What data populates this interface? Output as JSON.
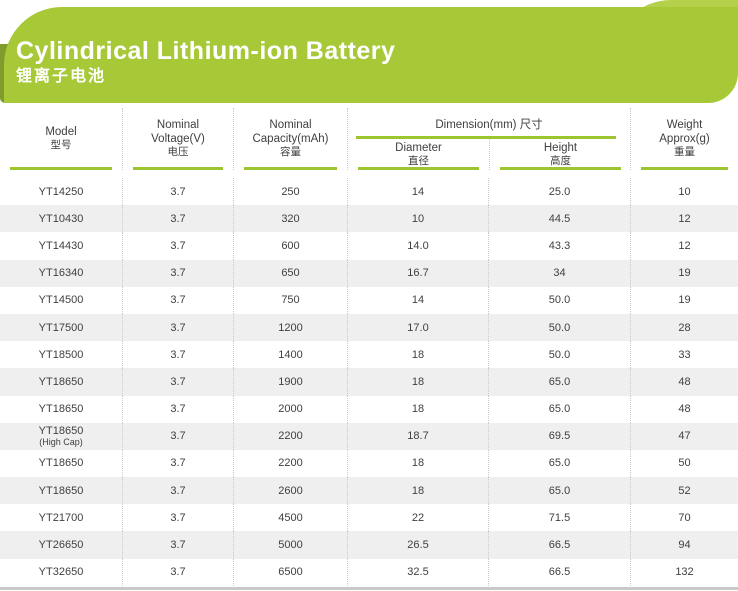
{
  "banner": {
    "title": "Cylindrical Lithium-ion Battery",
    "subtitle": "锂离子电池",
    "colors": {
      "main_green": "#a7c938",
      "light_green": "#b5d14c",
      "dark_green": "#7f9c2d",
      "underline_green": "#9cc52f"
    }
  },
  "table": {
    "header": {
      "model": [
        "Model",
        "型号"
      ],
      "voltage": [
        "Nominal",
        "Voltage(V)",
        "电压"
      ],
      "capacity": [
        "Nominal",
        "Capacity(mAh)",
        "容量"
      ],
      "dimension_group": "Dimension(mm) 尺寸",
      "diameter": [
        "Diameter",
        "直径"
      ],
      "height": [
        "Height",
        "高度"
      ],
      "weight": [
        "Weight",
        "Approx(g)",
        "重量"
      ]
    },
    "rows": [
      {
        "model": "YT14250",
        "note": "",
        "voltage": "3.7",
        "capacity": "250",
        "diameter": "14",
        "height": "25.0",
        "weight": "10"
      },
      {
        "model": "YT10430",
        "note": "",
        "voltage": "3.7",
        "capacity": "320",
        "diameter": "10",
        "height": "44.5",
        "weight": "12"
      },
      {
        "model": "YT14430",
        "note": "",
        "voltage": "3.7",
        "capacity": "600",
        "diameter": "14.0",
        "height": "43.3",
        "weight": "12"
      },
      {
        "model": "YT16340",
        "note": "",
        "voltage": "3.7",
        "capacity": "650",
        "diameter": "16.7",
        "height": "34",
        "weight": "19"
      },
      {
        "model": "YT14500",
        "note": "",
        "voltage": "3.7",
        "capacity": "750",
        "diameter": "14",
        "height": "50.0",
        "weight": "19"
      },
      {
        "model": "YT17500",
        "note": "",
        "voltage": "3.7",
        "capacity": "1200",
        "diameter": "17.0",
        "height": "50.0",
        "weight": "28"
      },
      {
        "model": "YT18500",
        "note": "",
        "voltage": "3.7",
        "capacity": "1400",
        "diameter": "18",
        "height": "50.0",
        "weight": "33"
      },
      {
        "model": "YT18650",
        "note": "",
        "voltage": "3.7",
        "capacity": "1900",
        "diameter": "18",
        "height": "65.0",
        "weight": "48"
      },
      {
        "model": "YT18650",
        "note": "",
        "voltage": "3.7",
        "capacity": "2000",
        "diameter": "18",
        "height": "65.0",
        "weight": "48"
      },
      {
        "model": "YT18650",
        "note": "(High Cap)",
        "voltage": "3.7",
        "capacity": "2200",
        "diameter": "18.7",
        "height": "69.5",
        "weight": "47"
      },
      {
        "model": "YT18650",
        "note": "",
        "voltage": "3.7",
        "capacity": "2200",
        "diameter": "18",
        "height": "65.0",
        "weight": "50"
      },
      {
        "model": "YT18650",
        "note": "",
        "voltage": "3.7",
        "capacity": "2600",
        "diameter": "18",
        "height": "65.0",
        "weight": "52"
      },
      {
        "model": "YT21700",
        "note": "",
        "voltage": "3.7",
        "capacity": "4500",
        "diameter": "22",
        "height": "71.5",
        "weight": "70"
      },
      {
        "model": "YT26650",
        "note": "",
        "voltage": "3.7",
        "capacity": "5000",
        "diameter": "26.5",
        "height": "66.5",
        "weight": "94"
      },
      {
        "model": "YT32650",
        "note": "",
        "voltage": "3.7",
        "capacity": "6500",
        "diameter": "32.5",
        "height": "66.5",
        "weight": "132"
      }
    ]
  }
}
